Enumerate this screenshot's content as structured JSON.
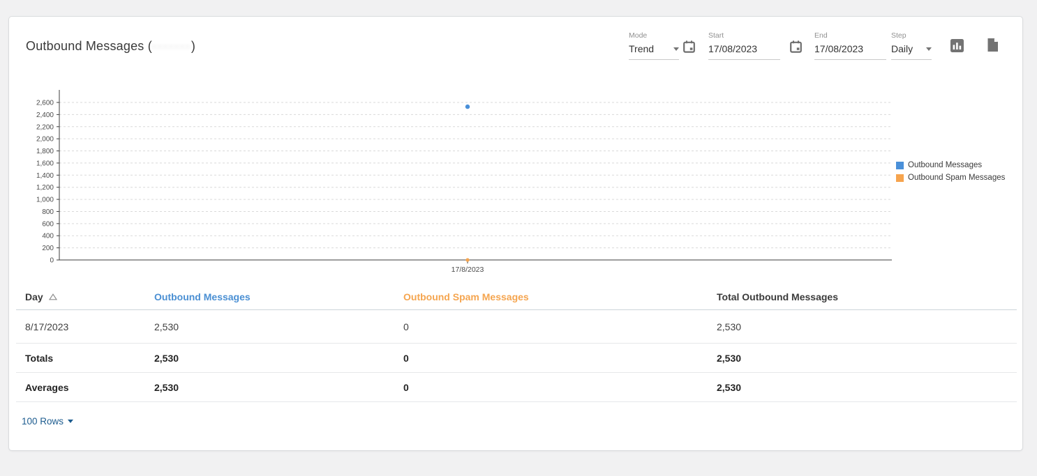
{
  "header": {
    "title_prefix": "Outbound Messages (",
    "title_redacted": "·······",
    "title_suffix": ")"
  },
  "controls": {
    "mode": {
      "label": "Mode",
      "value": "Trend"
    },
    "start": {
      "label": "Start",
      "value": "17/08/2023"
    },
    "end": {
      "label": "End",
      "value": "17/08/2023"
    },
    "step": {
      "label": "Step",
      "value": "Daily"
    }
  },
  "chart_data": {
    "type": "line",
    "title": "",
    "xlabel": "",
    "ylabel": "",
    "x": [
      "17/8/2023"
    ],
    "series": [
      {
        "name": "Outbound Messages",
        "color": "#4a90d9",
        "values": [
          2530
        ]
      },
      {
        "name": "Outbound Spam Messages",
        "color": "#f6a44e",
        "values": [
          0
        ]
      }
    ],
    "ylim": [
      0,
      2600
    ],
    "ytick_step": 200,
    "grid": "dashed-horizontal",
    "legend_position": "right"
  },
  "table": {
    "columns": [
      {
        "label": "Day",
        "sorted": "asc",
        "color": "#3b3b3b"
      },
      {
        "label": "Outbound Messages",
        "color": "#4a8fd3"
      },
      {
        "label": "Outbound Spam Messages",
        "color": "#f5a54f"
      },
      {
        "label": "Total Outbound Messages",
        "color": "#3b3b3b"
      }
    ],
    "rows": [
      {
        "day": "8/17/2023",
        "outbound_messages": "2,530",
        "outbound_spam_messages": "0",
        "total_outbound_messages": "2,530"
      },
      {
        "day": "Totals",
        "outbound_messages": "2,530",
        "outbound_spam_messages": "0",
        "total_outbound_messages": "2,530"
      },
      {
        "day": "Averages",
        "outbound_messages": "2,530",
        "outbound_spam_messages": "0",
        "total_outbound_messages": "2,530"
      }
    ]
  },
  "footer": {
    "rows_selector": "100 Rows"
  },
  "colors": {
    "accent_blue": "#4a90d9",
    "accent_orange": "#f6a44e",
    "link_blue": "#1d5c8f",
    "axis": "#3c3c3c",
    "gridline": "#d9d9d9"
  }
}
